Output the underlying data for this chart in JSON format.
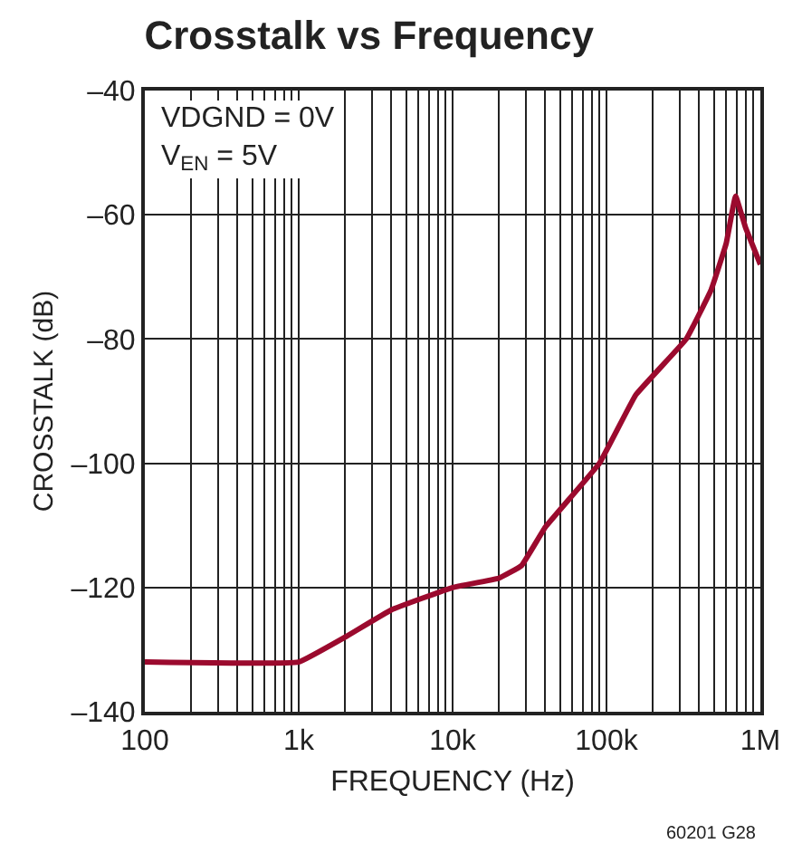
{
  "chart_data": {
    "type": "line",
    "title": "Crosstalk vs Frequency",
    "xlabel": "FREQUENCY (Hz)",
    "ylabel": "CROSSTALK (dB)",
    "annotations": [
      "VDGND = 0V\nV$_{EN}$ = 5V",
      "60201 G28"
    ],
    "x": [
      100,
      1000,
      2000,
      4000,
      10000,
      20000,
      28000,
      40000,
      90000,
      155000,
      330000,
      480000,
      600000,
      690000,
      800000,
      1000000
    ],
    "series": [
      {
        "color": "#9b0a2e",
        "values": [
          -132,
          -132,
          -128,
          -123.6,
          -120,
          -118.5,
          -116.5,
          -110.3,
          -100,
          -89,
          -80,
          -72,
          -64.6,
          -57,
          -62,
          -68
        ]
      }
    ],
    "log": "x",
    "grid": true,
    "marker": "none",
    "line_style": "solid",
    "xlim": [
      100,
      1000000
    ],
    "xticks": [
      {
        "value": 100,
        "label": "100"
      },
      {
        "value": 200,
        "label": null
      },
      {
        "value": 300,
        "label": null
      },
      {
        "value": 400,
        "label": null
      },
      {
        "value": 500,
        "label": null
      },
      {
        "value": 600,
        "label": null
      },
      {
        "value": 700,
        "label": null
      },
      {
        "value": 800,
        "label": null
      },
      {
        "value": 900,
        "label": null
      },
      {
        "value": 1000,
        "label": "1k"
      },
      {
        "value": 2000,
        "label": null
      },
      {
        "value": 3000,
        "label": null
      },
      {
        "value": 4000,
        "label": null
      },
      {
        "value": 5000,
        "label": null
      },
      {
        "value": 6000,
        "label": null
      },
      {
        "value": 7000,
        "label": null
      },
      {
        "value": 8000,
        "label": null
      },
      {
        "value": 9000,
        "label": null
      },
      {
        "value": 10000,
        "label": "10k"
      },
      {
        "value": 20000,
        "label": null
      },
      {
        "value": 30000,
        "label": null
      },
      {
        "value": 40000,
        "label": null
      },
      {
        "value": 50000,
        "label": null
      },
      {
        "value": 60000,
        "label": null
      },
      {
        "value": 70000,
        "label": null
      },
      {
        "value": 80000,
        "label": null
      },
      {
        "value": 90000,
        "label": null
      },
      {
        "value": 100000,
        "label": "100k"
      },
      {
        "value": 200000,
        "label": null
      },
      {
        "value": 300000,
        "label": null
      },
      {
        "value": 400000,
        "label": null
      },
      {
        "value": 500000,
        "label": null
      },
      {
        "value": 600000,
        "label": null
      },
      {
        "value": 700000,
        "label": null
      },
      {
        "value": 800000,
        "label": null
      },
      {
        "value": 900000,
        "label": null
      },
      {
        "value": 1000000,
        "label": "1M"
      }
    ],
    "ylim": [
      -140,
      -40
    ],
    "yticks": [
      {
        "value": -140,
        "label": "–140"
      },
      {
        "value": -120,
        "label": "–120"
      },
      {
        "value": -100,
        "label": "–100"
      },
      {
        "value": -80,
        "label": "–80"
      },
      {
        "value": -60,
        "label": "–60"
      },
      {
        "value": -40,
        "label": "–40"
      }
    ]
  }
}
